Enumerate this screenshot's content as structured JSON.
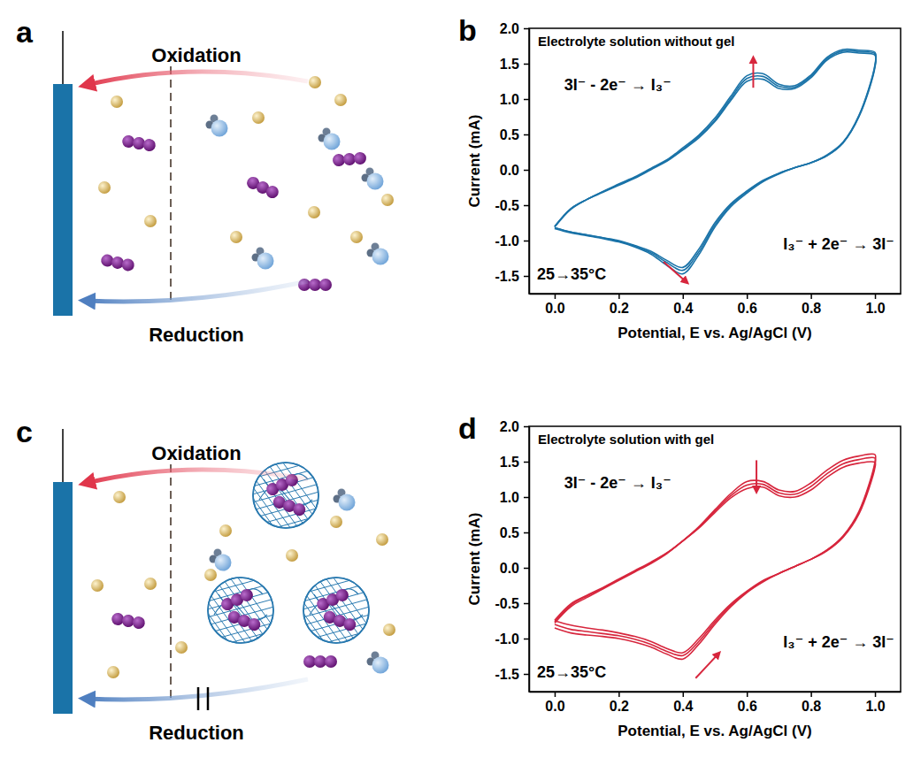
{
  "panel_labels": [
    "a",
    "b",
    "c",
    "d"
  ],
  "diagrams": [
    {
      "oxidation": "Oxidation",
      "reduction": "Reduction"
    },
    {
      "oxidation": "Oxidation",
      "reduction": "Reduction"
    }
  ],
  "chart_data": [
    {
      "type": "line",
      "title": "Electrolyte solution without gel",
      "x_label": "Potential, E vs. Ag/AgCl (V)",
      "y_label": "Current  (mA)",
      "annotations": [
        "3I⁻ - 2e⁻ → I₃⁻",
        "I₃⁻ + 2e⁻ → 3I⁻",
        "25→35°C"
      ],
      "x": [
        0,
        0.05,
        0.1,
        0.15,
        0.2,
        0.25,
        0.3,
        0.35,
        0.4,
        0.45,
        0.5,
        0.55,
        0.6,
        0.65,
        0.7,
        0.75,
        0.8,
        0.85,
        0.9,
        0.95,
        1,
        1,
        0.95,
        0.9,
        0.85,
        0.8,
        0.75,
        0.7,
        0.65,
        0.6,
        0.55,
        0.5,
        0.45,
        0.4,
        0.35,
        0.3,
        0.25,
        0.2,
        0.15,
        0.1,
        0.05,
        0
      ],
      "series": [
        {
          "color": "#1a73a8",
          "values": [
            -0.8,
            -0.55,
            -0.42,
            -0.32,
            -0.22,
            -0.12,
            0.0,
            0.12,
            0.28,
            0.45,
            0.68,
            0.98,
            1.25,
            1.28,
            1.15,
            1.15,
            1.3,
            1.55,
            1.66,
            1.65,
            1.62,
            1.45,
            0.75,
            0.38,
            0.2,
            0.1,
            0.03,
            -0.05,
            -0.15,
            -0.3,
            -0.48,
            -0.75,
            -1.12,
            -1.38,
            -1.28,
            -1.15,
            -1.07,
            -1.0,
            -0.96,
            -0.92,
            -0.88,
            -0.82
          ]
        },
        {
          "color": "#1a73a8",
          "values": [
            -0.8,
            -0.55,
            -0.42,
            -0.31,
            -0.21,
            -0.11,
            0.01,
            0.13,
            0.29,
            0.47,
            0.7,
            1.01,
            1.29,
            1.32,
            1.18,
            1.17,
            1.32,
            1.57,
            1.68,
            1.67,
            1.64,
            1.47,
            0.76,
            0.38,
            0.2,
            0.1,
            0.03,
            -0.05,
            -0.16,
            -0.31,
            -0.5,
            -0.78,
            -1.16,
            -1.42,
            -1.31,
            -1.17,
            -1.08,
            -1.01,
            -0.96,
            -0.92,
            -0.88,
            -0.82
          ]
        },
        {
          "color": "#1a73a8",
          "values": [
            -0.81,
            -0.56,
            -0.42,
            -0.31,
            -0.2,
            -0.1,
            0.02,
            0.14,
            0.31,
            0.49,
            0.73,
            1.04,
            1.33,
            1.36,
            1.21,
            1.19,
            1.34,
            1.59,
            1.7,
            1.69,
            1.66,
            1.49,
            0.77,
            0.39,
            0.21,
            0.1,
            0.03,
            -0.06,
            -0.17,
            -0.33,
            -0.52,
            -0.81,
            -1.2,
            -1.47,
            -1.35,
            -1.19,
            -1.09,
            -1.02,
            -0.97,
            -0.93,
            -0.89,
            -0.83
          ]
        }
      ],
      "xlim": [
        -0.08,
        1.08
      ],
      "ylim": [
        -1.75,
        2.0
      ],
      "xticks": [
        {
          "value": 0,
          "label": "0.0"
        },
        0.2,
        0.4,
        0.6,
        0.8,
        {
          "value": 1,
          "label": "1.0"
        }
      ],
      "yticks": [
        -1.5,
        {
          "value": -1,
          "label": "-1.0"
        },
        -0.5,
        {
          "value": 0,
          "label": "0.0"
        },
        0.5,
        {
          "value": 1,
          "label": "1.0"
        },
        1.5,
        {
          "value": 2,
          "label": "2.0"
        }
      ],
      "grid": false
    },
    {
      "type": "line",
      "title": "Electrolyte solution with gel",
      "x_label": "Potential, E vs. Ag/AgCl (V)",
      "y_label": "Current  (mA)",
      "annotations": [
        "3I⁻ - 2e⁻ → I₃⁻",
        "I₃⁻ + 2e⁻ → 3I⁻",
        "25→35°C"
      ],
      "x": [
        0,
        0.05,
        0.1,
        0.15,
        0.2,
        0.25,
        0.3,
        0.35,
        0.4,
        0.45,
        0.5,
        0.55,
        0.6,
        0.65,
        0.7,
        0.75,
        0.8,
        0.85,
        0.9,
        0.95,
        1,
        1,
        0.95,
        0.9,
        0.85,
        0.8,
        0.75,
        0.7,
        0.65,
        0.6,
        0.55,
        0.5,
        0.45,
        0.4,
        0.35,
        0.3,
        0.25,
        0.2,
        0.15,
        0.1,
        0.05,
        0
      ],
      "series": [
        {
          "color": "#d7263d",
          "values": [
            -0.78,
            -0.55,
            -0.42,
            -0.3,
            -0.18,
            -0.06,
            0.06,
            0.2,
            0.38,
            0.58,
            0.82,
            1.05,
            1.22,
            1.22,
            1.1,
            1.08,
            1.2,
            1.38,
            1.52,
            1.58,
            1.6,
            1.5,
            0.8,
            0.45,
            0.25,
            0.12,
            0.02,
            -0.08,
            -0.2,
            -0.35,
            -0.55,
            -0.8,
            -1.08,
            -1.29,
            -1.22,
            -1.12,
            -1.05,
            -1.0,
            -0.97,
            -0.95,
            -0.92,
            -0.85
          ]
        },
        {
          "color": "#d7263d",
          "values": [
            -0.76,
            -0.53,
            -0.4,
            -0.29,
            -0.17,
            -0.05,
            0.07,
            0.21,
            0.38,
            0.57,
            0.8,
            1.02,
            1.17,
            1.18,
            1.06,
            1.04,
            1.15,
            1.33,
            1.47,
            1.53,
            1.55,
            1.46,
            0.78,
            0.44,
            0.25,
            0.12,
            0.02,
            -0.08,
            -0.19,
            -0.34,
            -0.53,
            -0.77,
            -1.04,
            -1.24,
            -1.18,
            -1.08,
            -1.01,
            -0.96,
            -0.93,
            -0.9,
            -0.87,
            -0.8
          ]
        },
        {
          "color": "#d7263d",
          "values": [
            -0.74,
            -0.51,
            -0.39,
            -0.28,
            -0.16,
            -0.04,
            0.08,
            0.21,
            0.38,
            0.56,
            0.78,
            0.99,
            1.12,
            1.14,
            1.02,
            1.0,
            1.1,
            1.28,
            1.42,
            1.48,
            1.49,
            1.42,
            0.76,
            0.43,
            0.24,
            0.12,
            0.02,
            -0.08,
            -0.18,
            -0.33,
            -0.51,
            -0.74,
            -1.0,
            -1.2,
            -1.14,
            -1.04,
            -0.97,
            -0.92,
            -0.88,
            -0.85,
            -0.81,
            -0.75
          ]
        }
      ],
      "xlim": [
        -0.08,
        1.08
      ],
      "ylim": [
        -1.75,
        2.0
      ],
      "xticks": [
        {
          "value": 0,
          "label": "0.0"
        },
        0.2,
        0.4,
        0.6,
        0.8,
        {
          "value": 1,
          "label": "1.0"
        }
      ],
      "yticks": [
        -1.5,
        {
          "value": -1,
          "label": "-1.0"
        },
        -0.5,
        {
          "value": 0,
          "label": "0.0"
        },
        0.5,
        {
          "value": 1,
          "label": "1.0"
        },
        1.5,
        {
          "value": 2,
          "label": "2.0"
        }
      ],
      "grid": false
    }
  ]
}
